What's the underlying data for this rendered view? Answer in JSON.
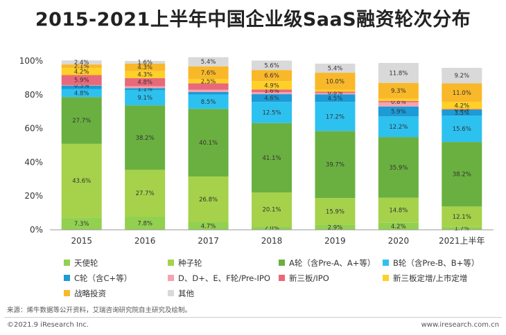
{
  "title": "2015-2021上半年中国企业级SaaS融资轮次分布",
  "source": "来源：烯牛数据等公开资料，艾瑞咨询研究院自主研究及绘制。",
  "footer": {
    "copyright": "©2021.9 iResearch Inc.",
    "url": "www.iresearch.com.cn"
  },
  "chart_data": {
    "type": "bar",
    "stacked": true,
    "categories": [
      "2015",
      "2016",
      "2017",
      "2018",
      "2019",
      "2020",
      "2021上半年"
    ],
    "y_ticks": [
      "0%",
      "20%",
      "40%",
      "60%",
      "80%",
      "100%"
    ],
    "ylim": [
      0,
      100
    ],
    "grid": false,
    "legend_position": "bottom",
    "series": [
      {
        "name": "天使轮",
        "color": "#92D050",
        "values": [
          7.3,
          7.8,
          4.7,
          2.0,
          2.9,
          4.2,
          1.7
        ],
        "labels": [
          "7.3%",
          "7.8%",
          "4.7%",
          "2.0%",
          "2.9%",
          "4.2%",
          "1.7%"
        ]
      },
      {
        "name": "种子轮",
        "color": "#A5D24A",
        "values": [
          43.6,
          27.7,
          26.8,
          20.1,
          15.9,
          14.8,
          12.1
        ],
        "labels": [
          "43.6%",
          "27.7%",
          "26.8%",
          "20.1%",
          "15.9%",
          "14.8%",
          "12.1%"
        ]
      },
      {
        "name": "A轮（含Pre-A、A+等）",
        "color": "#6AB040",
        "values": [
          27.7,
          38.2,
          40.1,
          41.1,
          39.7,
          35.9,
          38.2
        ],
        "labels": [
          "27.7%",
          "38.2%",
          "40.1%",
          "41.1%",
          "39.7%",
          "35.9%",
          "38.2%"
        ]
      },
      {
        "name": "B轮（含Pre-B、B+等）",
        "color": "#2DC1F0",
        "values": [
          4.8,
          9.1,
          8.5,
          12.5,
          17.2,
          12.2,
          15.6
        ],
        "labels": [
          "4.8%",
          "9.1%",
          "8.5%",
          "12.5%",
          "17.2%",
          "12.2%",
          "15.6%"
        ]
      },
      {
        "name": "C轮（含C+等）",
        "color": "#1C9BD7",
        "values": [
          2.0,
          1.1,
          1.5,
          4.6,
          4.5,
          5.9,
          3.5
        ],
        "labels": [
          "",
          "1.1%",
          "",
          "4.6%",
          "4.5%",
          "5.9%",
          "3.5%"
        ]
      },
      {
        "name": "D、D+、E、F轮/Pre-IPO",
        "color": "#F4A3B0",
        "values": [
          0.3,
          1.1,
          1.3,
          1.2,
          0.8,
          2.5,
          0.0
        ],
        "labels": [
          "0.3%",
          "",
          "",
          "",
          "",
          "",
          ""
        ]
      },
      {
        "name": "新三板/IPO",
        "color": "#E8697A",
        "values": [
          5.9,
          4.8,
          3.8,
          1.6,
          0.8,
          0.8,
          0.4
        ],
        "labels": [
          "5.9%",
          "4.8%",
          "",
          "1.6%",
          "0.8%",
          "0.8%",
          "0.4%"
        ]
      },
      {
        "name": "新三板定增/上市定增",
        "color": "#FFD026",
        "values": [
          4.2,
          4.3,
          2.5,
          4.9,
          1.2,
          1.4,
          4.2
        ],
        "labels": [
          "4.2%",
          "4.3%",
          "2.5%",
          "4.9%",
          "",
          "",
          "4.2%"
        ]
      },
      {
        "name": "战略投资",
        "color": "#F9B829",
        "values": [
          2.1,
          4.3,
          7.6,
          6.6,
          10.0,
          9.3,
          11.0
        ],
        "labels": [
          "2.1%",
          "4.3%",
          "7.6%",
          "6.6%",
          "10.0%",
          "9.3%",
          "11.0%"
        ]
      },
      {
        "name": "其他",
        "color": "#D9D9D9",
        "values": [
          2.4,
          1.6,
          5.4,
          5.6,
          5.4,
          11.8,
          9.2
        ],
        "labels": [
          "2.4%",
          "1.6%",
          "5.4%",
          "5.6%",
          "5.4%",
          "11.8%",
          "9.2%"
        ]
      }
    ]
  }
}
